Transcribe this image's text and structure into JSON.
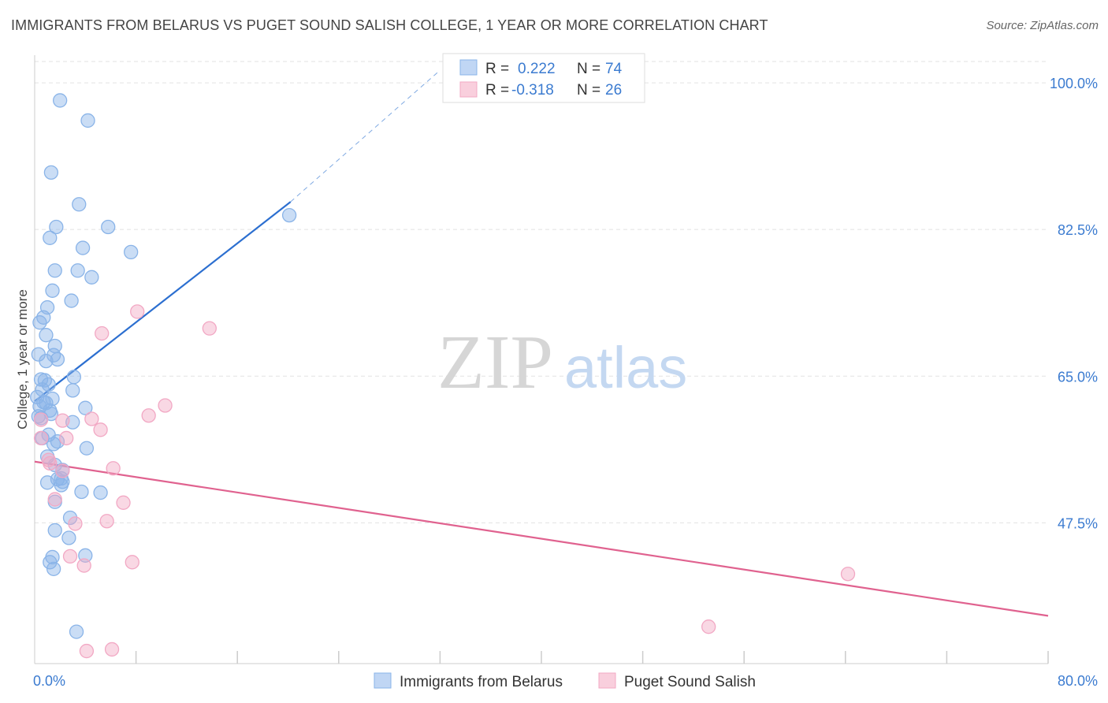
{
  "header": {
    "title": "IMMIGRANTS FROM BELARUS VS PUGET SOUND SALISH COLLEGE, 1 YEAR OR MORE CORRELATION CHART",
    "source": "Source: ZipAtlas.com"
  },
  "watermark": {
    "zip": "ZIP",
    "atlas": "atlas"
  },
  "legend": {
    "r_label": "R =",
    "n_label": "N =",
    "rows": [
      {
        "r": "0.222",
        "n": "74"
      },
      {
        "r": "-0.318",
        "n": "26"
      }
    ]
  },
  "chart_data": {
    "type": "scatter",
    "title": "IMMIGRANTS FROM BELARUS VS PUGET SOUND SALISH COLLEGE, 1 YEAR OR MORE CORRELATION CHART",
    "xlabel": "",
    "ylabel": "College, 1 year or more",
    "xlim": [
      0,
      80
    ],
    "ylim": [
      30.7,
      103.3
    ],
    "x_tick_labels": [
      "0.0%",
      "80.0%"
    ],
    "y_ticks": [
      47.5,
      65.0,
      82.5,
      100.0
    ],
    "y_tick_labels": [
      "47.5%",
      "65.0%",
      "82.5%",
      "100.0%"
    ],
    "grid": true,
    "series": [
      {
        "name": "Immigrants from Belarus",
        "color": "#8ab4e8",
        "line_color": "#2c6fd0",
        "points": [
          [
            2.0,
            97.9
          ],
          [
            4.2,
            95.5
          ],
          [
            1.3,
            89.3
          ],
          [
            3.5,
            85.5
          ],
          [
            1.7,
            82.8
          ],
          [
            5.8,
            82.8
          ],
          [
            1.2,
            81.5
          ],
          [
            3.8,
            80.3
          ],
          [
            7.6,
            79.8
          ],
          [
            1.6,
            77.6
          ],
          [
            3.4,
            77.6
          ],
          [
            4.5,
            76.8
          ],
          [
            1.4,
            75.2
          ],
          [
            2.9,
            74.0
          ],
          [
            1.0,
            73.2
          ],
          [
            0.7,
            72.0
          ],
          [
            0.4,
            71.4
          ],
          [
            0.9,
            69.9
          ],
          [
            1.6,
            68.6
          ],
          [
            0.3,
            67.6
          ],
          [
            1.5,
            67.5
          ],
          [
            1.8,
            67.0
          ],
          [
            0.9,
            66.8
          ],
          [
            3.1,
            64.9
          ],
          [
            0.5,
            64.6
          ],
          [
            0.8,
            64.5
          ],
          [
            1.1,
            64.0
          ],
          [
            0.6,
            63.4
          ],
          [
            3.0,
            63.3
          ],
          [
            0.2,
            62.5
          ],
          [
            1.4,
            62.3
          ],
          [
            0.7,
            61.9
          ],
          [
            0.4,
            61.4
          ],
          [
            0.9,
            61.8
          ],
          [
            1.2,
            60.9
          ],
          [
            4.0,
            61.2
          ],
          [
            0.3,
            60.2
          ],
          [
            1.3,
            60.5
          ],
          [
            0.5,
            60.0
          ],
          [
            3.0,
            59.5
          ],
          [
            1.1,
            58.0
          ],
          [
            0.6,
            57.6
          ],
          [
            1.8,
            57.2
          ],
          [
            1.5,
            56.9
          ],
          [
            4.1,
            56.4
          ],
          [
            1.0,
            55.4
          ],
          [
            1.6,
            54.4
          ],
          [
            2.2,
            53.8
          ],
          [
            2.1,
            52.8
          ],
          [
            1.8,
            52.7
          ],
          [
            2.2,
            52.4
          ],
          [
            1.0,
            52.3
          ],
          [
            2.1,
            52.0
          ],
          [
            3.7,
            51.2
          ],
          [
            5.2,
            51.1
          ],
          [
            1.6,
            50.0
          ],
          [
            2.8,
            48.1
          ],
          [
            1.6,
            46.6
          ],
          [
            2.7,
            45.7
          ],
          [
            4.0,
            43.6
          ],
          [
            1.4,
            43.4
          ],
          [
            1.2,
            42.8
          ],
          [
            1.5,
            42.0
          ],
          [
            3.3,
            34.5
          ],
          [
            20.1,
            84.2
          ]
        ],
        "trend": {
          "x0": 0,
          "y0": 62.0,
          "x1": 20.2,
          "y1": 85.8
        },
        "trend_ext": {
          "x0": 20.2,
          "y0": 85.8,
          "x1": 32.0,
          "y1": 101.5
        }
      },
      {
        "name": "Puget Sound Salish",
        "color": "#f2a8c4",
        "line_color": "#e0628f",
        "points": [
          [
            8.1,
            72.7
          ],
          [
            13.8,
            70.7
          ],
          [
            5.3,
            70.1
          ],
          [
            10.3,
            61.5
          ],
          [
            9.0,
            60.3
          ],
          [
            4.5,
            59.9
          ],
          [
            0.5,
            59.8
          ],
          [
            2.2,
            59.7
          ],
          [
            5.2,
            58.6
          ],
          [
            0.5,
            57.6
          ],
          [
            2.5,
            57.6
          ],
          [
            1.1,
            55.0
          ],
          [
            6.2,
            54.0
          ],
          [
            1.2,
            54.6
          ],
          [
            2.2,
            53.7
          ],
          [
            1.6,
            50.3
          ],
          [
            7.0,
            49.9
          ],
          [
            5.7,
            47.7
          ],
          [
            3.2,
            47.4
          ],
          [
            7.7,
            42.8
          ],
          [
            2.8,
            43.5
          ],
          [
            3.9,
            42.4
          ],
          [
            64.2,
            41.4
          ],
          [
            53.2,
            35.1
          ],
          [
            4.1,
            32.2
          ],
          [
            6.1,
            32.4
          ]
        ],
        "trend": {
          "x0": 0,
          "y0": 54.8,
          "x1": 80,
          "y1": 36.4
        }
      }
    ]
  }
}
